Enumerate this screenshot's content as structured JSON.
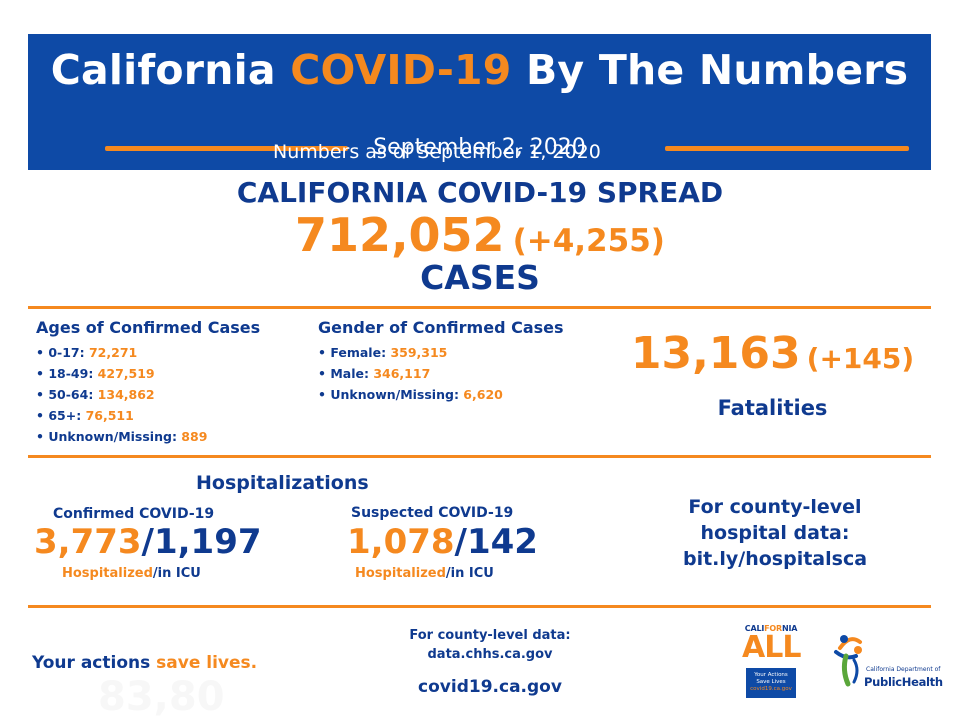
{
  "banner": {
    "title_pre": "California ",
    "title_hl": "COVID-19",
    "title_post": " By The Numbers",
    "date": "September 2, 2020",
    "as_of": "Numbers as of September 1, 2020"
  },
  "colors": {
    "navy": "#0e4aa6",
    "orange": "#f5891f",
    "text_navy": "#0f3a8f"
  },
  "spread": {
    "heading": "CALIFORNIA COVID-19 SPREAD",
    "cases": "712,052",
    "change": "(+4,255)",
    "unit": "CASES"
  },
  "ages": {
    "heading": "Ages of Confirmed Cases",
    "items": [
      {
        "label": "• 0-17: ",
        "value": "72,271"
      },
      {
        "label": "• 18-49: ",
        "value": "427,519"
      },
      {
        "label": "• 50-64: ",
        "value": "134,862"
      },
      {
        "label": "• 65+: ",
        "value": "76,511"
      },
      {
        "label": "• Unknown/Missing: ",
        "value": "889"
      }
    ]
  },
  "gender": {
    "heading": "Gender of Confirmed Cases",
    "items": [
      {
        "label": "• Female: ",
        "value": "359,315"
      },
      {
        "label": "• Male: ",
        "value": "346,117"
      },
      {
        "label": "• Unknown/Missing: ",
        "value": "6,620"
      }
    ]
  },
  "fatalities": {
    "number": "13,163",
    "change": "(+145)",
    "label": "Fatalities"
  },
  "hospitalizations": {
    "heading": "Hospitalizations",
    "confirmed": {
      "title": "Confirmed COVID-19",
      "hospitalized": "3,773",
      "sep": "/",
      "icu": "1,197",
      "sub_hosp": "Hospitalized",
      "sub_icu": "/in ICU"
    },
    "suspected": {
      "title": "Suspected COVID-19",
      "hospitalized": "1,078",
      "sep": "/",
      "icu": "142",
      "sub_hosp": "Hospitalized",
      "sub_icu": "/in ICU"
    },
    "county": {
      "line1": "For county-level",
      "line2": "hospital data:",
      "line3": "bit.ly/hospitalsca"
    }
  },
  "footer": {
    "tagline_pre": "Your actions ",
    "tagline_hl": "save lives.",
    "ghost_text": "83,80",
    "county_line1": "For county-level data:",
    "county_line2": "data.chhs.ca.gov",
    "site": "covid19.ca.gov"
  },
  "logo_ca_all": {
    "top_pre": "CALI",
    "top_hl": "FOR",
    "top_post": "NIA",
    "word": "ALL",
    "box1": "Your Actions",
    "box2": "Save Lives",
    "box3": "covid19.ca.gov"
  },
  "logo_cdph": {
    "small": "California Department of",
    "big": "PublicHealth",
    "icon": "cdph-figure-icon"
  }
}
